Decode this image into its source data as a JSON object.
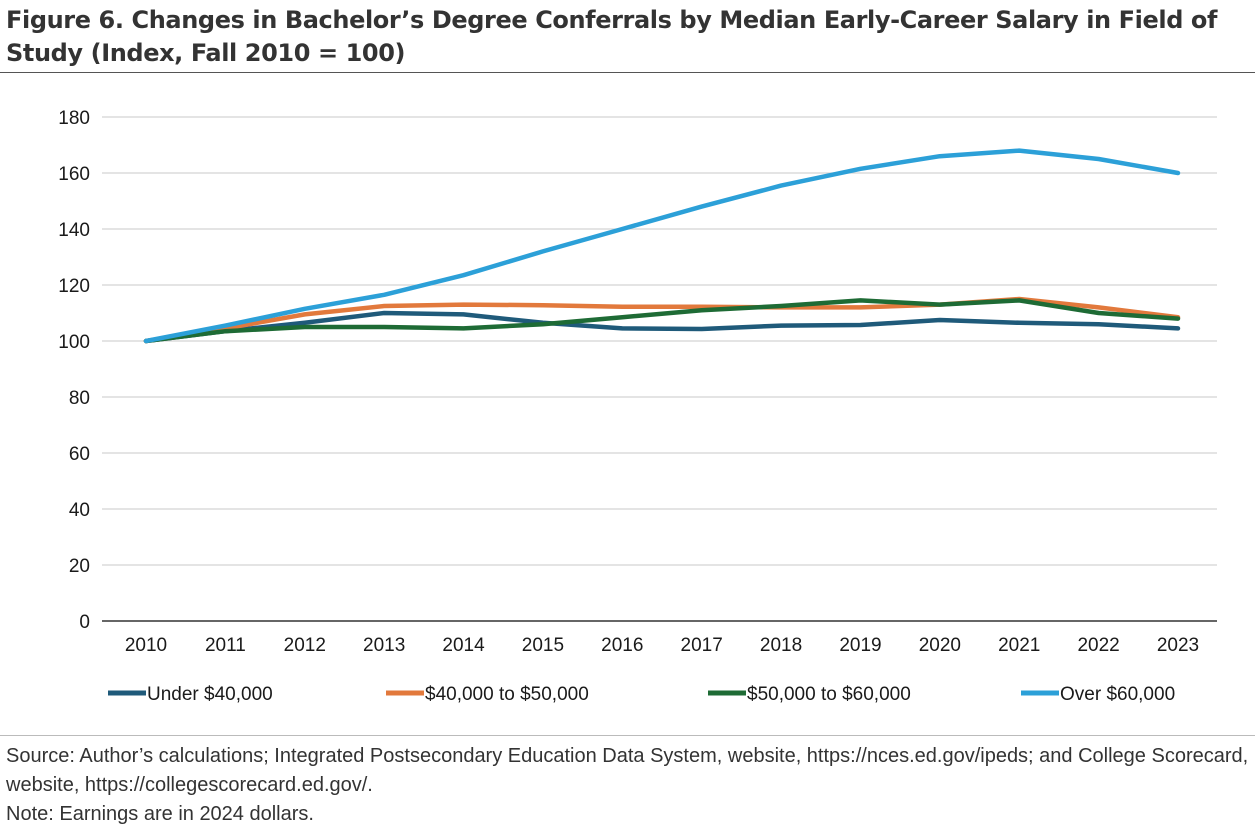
{
  "figure": {
    "title": "Figure 6. Changes in Bachelor’s Degree Conferrals by Median Early-Career Salary in Field of Study (Index, Fall 2010 = 100)",
    "source": "Source: Author’s calculations; Integrated Postsecondary Education Data System, website, https://nces.ed.gov/ipeds; and College Scorecard, website, https://collegescorecard.ed.gov/.",
    "note": "Note: Earnings are in 2024 dollars."
  },
  "chart_data": {
    "type": "line",
    "title": "Figure 6. Changes in Bachelor’s Degree Conferrals by Median Early-Career Salary in Field of Study (Index, Fall 2010 = 100)",
    "xlabel": "",
    "ylabel": "",
    "x": [
      "2010",
      "2011",
      "2012",
      "2013",
      "2014",
      "2015",
      "2016",
      "2017",
      "2018",
      "2019",
      "2020",
      "2021",
      "2022",
      "2023"
    ],
    "ylim": [
      0,
      180
    ],
    "yticks": [
      0,
      20,
      40,
      60,
      80,
      100,
      120,
      140,
      160,
      180
    ],
    "grid": true,
    "legend_position": "bottom",
    "series": [
      {
        "name": "Under $40,000",
        "color": "#1f5a7a",
        "values": [
          100,
          103.5,
          106.5,
          110,
          109.5,
          106.5,
          104.5,
          104.3,
          105.5,
          105.7,
          107.5,
          106.5,
          106,
          104.5
        ]
      },
      {
        "name": "$40,000 to $50,000",
        "color": "#e2793c",
        "values": [
          100,
          104.5,
          109.5,
          112.5,
          113,
          112.8,
          112.2,
          112.2,
          112,
          112,
          113,
          115,
          112,
          108.5
        ]
      },
      {
        "name": "$50,000 to $60,000",
        "color": "#1e6b35",
        "values": [
          100,
          103.5,
          105,
          105,
          104.5,
          106,
          108.5,
          111,
          112.5,
          114.5,
          113,
          114.5,
          110,
          108
        ]
      },
      {
        "name": "Over $60,000",
        "color": "#2ca0d8",
        "values": [
          100,
          105.5,
          111.5,
          116.5,
          123.5,
          132,
          140,
          148,
          155.5,
          161.5,
          166,
          168,
          165,
          160
        ]
      }
    ]
  }
}
